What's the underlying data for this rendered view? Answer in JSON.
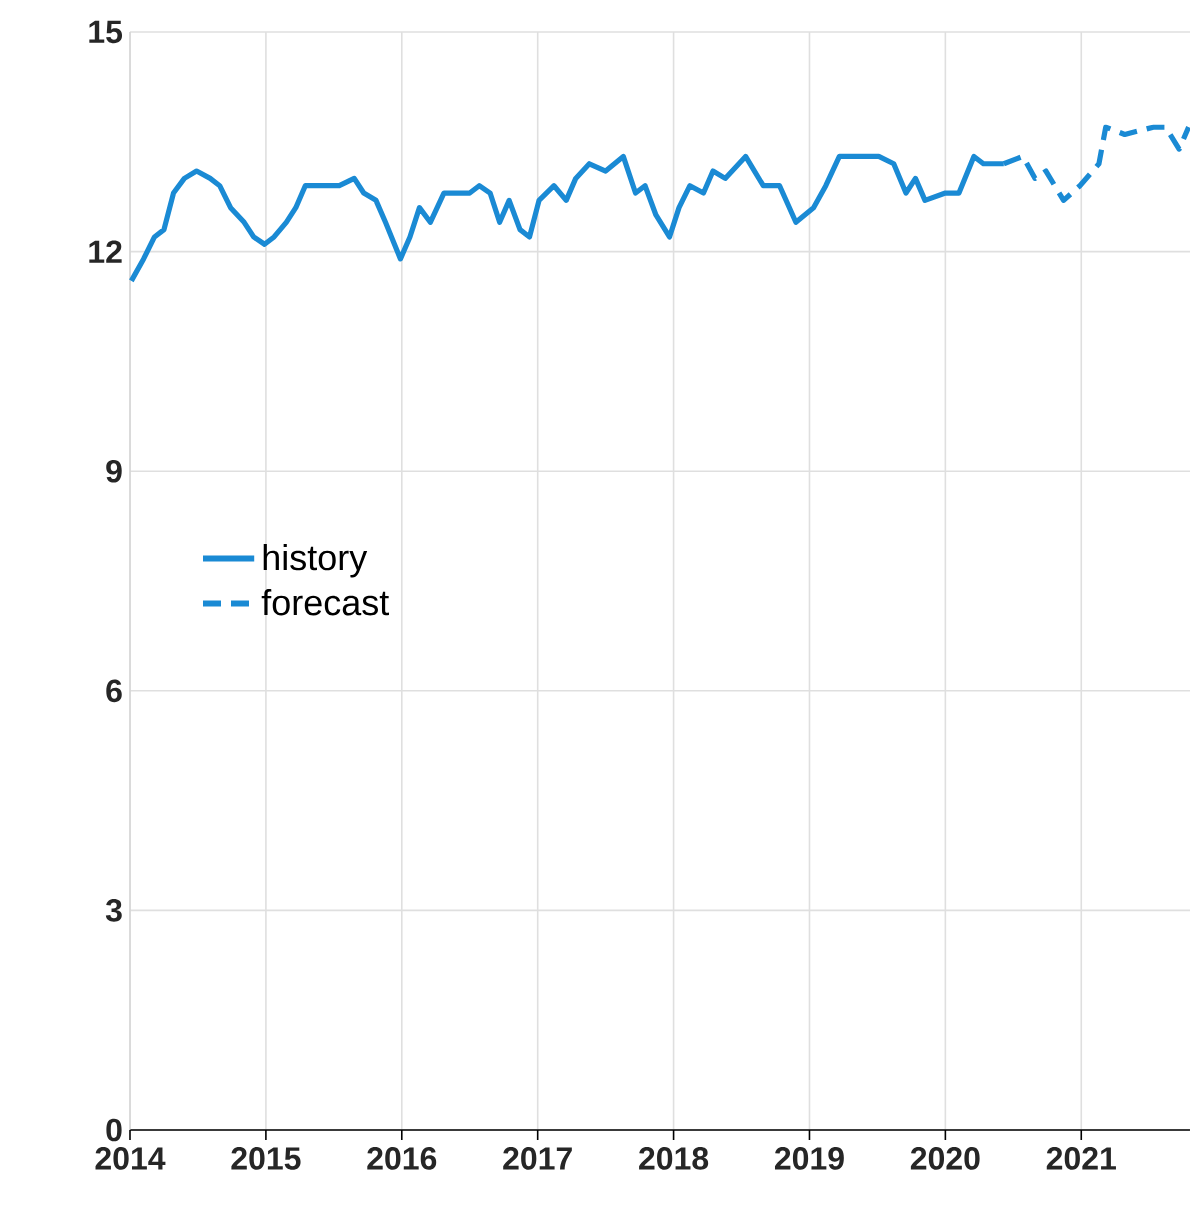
{
  "chart_data": {
    "type": "line",
    "xlim": [
      2014,
      2021.8
    ],
    "xticks": [
      2014,
      2015,
      2016,
      2017,
      2018,
      2019,
      2020,
      2021
    ],
    "ylim": [
      0,
      15
    ],
    "yticks": [
      0,
      3,
      6,
      9,
      12,
      15
    ],
    "grid": true,
    "legend": "left",
    "series": [
      {
        "name": "history",
        "color": "#1a8ad4",
        "line_style": "solid",
        "x": [
          2014.01,
          2014.1,
          2014.18,
          2014.25,
          2014.32,
          2014.4,
          2014.49,
          2014.59,
          2014.66,
          2014.74,
          2014.84,
          2014.91,
          2014.99,
          2015.06,
          2015.15,
          2015.22,
          2015.29,
          2015.43,
          2015.54,
          2015.65,
          2015.72,
          2015.81,
          2015.88,
          2015.99,
          2016.06,
          2016.13,
          2016.21,
          2016.31,
          2016.4,
          2016.5,
          2016.57,
          2016.65,
          2016.72,
          2016.79,
          2016.87,
          2016.94,
          2017.01,
          2017.12,
          2017.21,
          2017.28,
          2017.38,
          2017.5,
          2017.63,
          2017.72,
          2017.79,
          2017.87,
          2017.97,
          2018.04,
          2018.12,
          2018.22,
          2018.29,
          2018.38,
          2018.53,
          2018.66,
          2018.78,
          2018.9,
          2019.03,
          2019.12,
          2019.22,
          2019.37,
          2019.51,
          2019.62,
          2019.71,
          2019.78,
          2019.85,
          2020.0,
          2020.1,
          2020.21,
          2020.28,
          2020.43
        ],
        "values": [
          11.6,
          11.9,
          12.2,
          12.3,
          12.8,
          13.0,
          13.1,
          13.0,
          12.9,
          12.6,
          12.4,
          12.2,
          12.1,
          12.2,
          12.4,
          12.6,
          12.9,
          12.9,
          12.9,
          13.0,
          12.8,
          12.7,
          12.4,
          11.9,
          12.2,
          12.6,
          12.4,
          12.8,
          12.8,
          12.8,
          12.9,
          12.8,
          12.4,
          12.7,
          12.3,
          12.2,
          12.7,
          12.9,
          12.7,
          13.0,
          13.2,
          13.1,
          13.3,
          12.8,
          12.9,
          12.5,
          12.2,
          12.6,
          12.9,
          12.8,
          13.1,
          13.0,
          13.3,
          12.9,
          12.9,
          12.4,
          12.6,
          12.9,
          13.3,
          13.3,
          13.3,
          13.2,
          12.8,
          13.0,
          12.7,
          12.8,
          12.8,
          13.3,
          13.2,
          13.2
        ]
      },
      {
        "name": "forecast",
        "color": "#1a8ad4",
        "line_style": "dashed",
        "x": [
          2020.43,
          2020.57,
          2020.66,
          2020.74,
          2020.87,
          2020.99,
          2021.13,
          2021.18,
          2021.32,
          2021.53,
          2021.62,
          2021.72,
          2021.79
        ],
        "values": [
          13.2,
          13.3,
          13.0,
          13.1,
          12.7,
          12.9,
          13.2,
          13.7,
          13.6,
          13.7,
          13.7,
          13.4,
          13.7
        ]
      }
    ]
  }
}
